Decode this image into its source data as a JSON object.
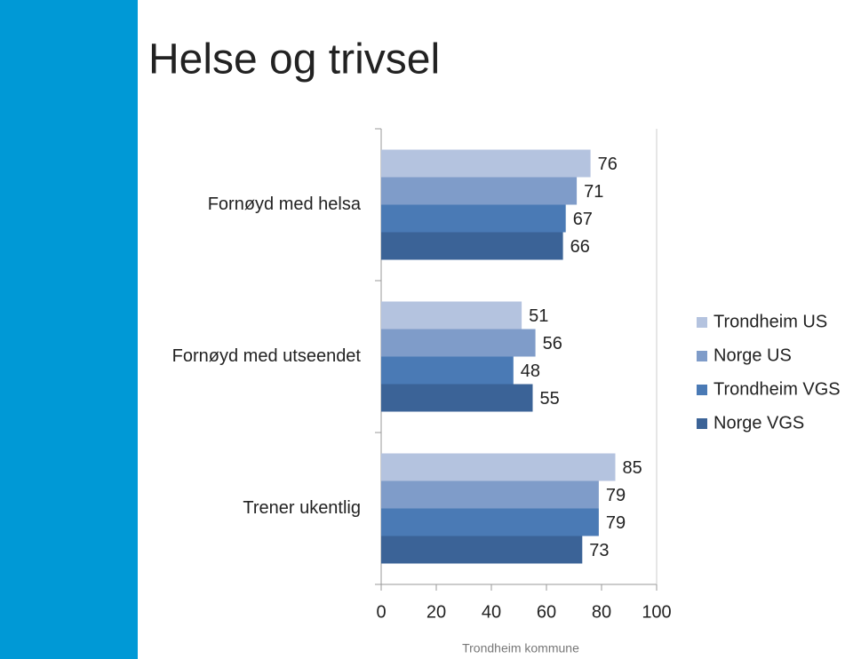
{
  "chart_data": {
    "type": "bar",
    "orientation": "horizontal",
    "title": "Helse og trivsel",
    "categories": [
      "Fornøyd med helsa",
      "Fornøyd med utseendet",
      "Trener ukentlig"
    ],
    "series": [
      {
        "name": "Trondheim US",
        "color": "#b4c3df",
        "values": [
          76,
          51,
          85
        ]
      },
      {
        "name": "Norge US",
        "color": "#7f9cc9",
        "values": [
          71,
          56,
          79
        ]
      },
      {
        "name": "Trondheim VGS",
        "color": "#4a7ab5",
        "values": [
          67,
          48,
          79
        ]
      },
      {
        "name": "Norge VGS",
        "color": "#3b6397",
        "values": [
          66,
          55,
          73
        ]
      }
    ],
    "xlim": [
      0,
      100
    ],
    "xticks": [
      0,
      20,
      40,
      60,
      80,
      100
    ],
    "grid": false,
    "legend": "right"
  },
  "footer": "Trondheim kommune"
}
